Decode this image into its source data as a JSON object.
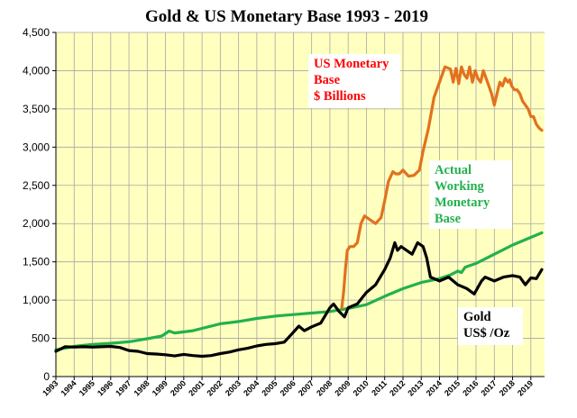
{
  "chart_data": {
    "type": "line",
    "title": "Gold & US Monetary Base 1993 - 2019",
    "xlabel": "",
    "ylabel": "",
    "xlim": [
      1993,
      2019.75
    ],
    "ylim": [
      0,
      4500
    ],
    "y_ticks": [
      0,
      500,
      1000,
      1500,
      2000,
      2500,
      3000,
      3500,
      4000,
      4500
    ],
    "y_tick_labels": [
      "0",
      "500",
      "1,000",
      "1,500",
      "2,000",
      "2,500",
      "3,000",
      "3,500",
      "4,000",
      "4,500"
    ],
    "x_tick_labels": [
      "1993",
      "1994",
      "1995",
      "1996",
      "1997",
      "1998",
      "1999",
      "2000",
      "2001",
      "2002",
      "2003",
      "2004",
      "2005",
      "2006",
      "2007",
      "2008",
      "2009",
      "2010",
      "2011",
      "2012",
      "2013",
      "2014",
      "2015",
      "2016",
      "2017",
      "2018",
      "2019"
    ],
    "grid": true,
    "background": "#FFFFC0",
    "series": [
      {
        "name": "US Monetary Base $ Billions",
        "color": "#E2711D",
        "x": [
          2008.65,
          2008.75,
          2008.85,
          2008.95,
          2009.1,
          2009.3,
          2009.5,
          2009.7,
          2009.9,
          2010.2,
          2010.5,
          2010.8,
          2011.0,
          2011.2,
          2011.45,
          2011.6,
          2011.8,
          2012.0,
          2012.3,
          2012.6,
          2012.9,
          2013.1,
          2013.4,
          2013.7,
          2014.0,
          2014.3,
          2014.6,
          2014.75,
          2014.9,
          2015.05,
          2015.2,
          2015.35,
          2015.5,
          2015.65,
          2015.8,
          2015.95,
          2016.1,
          2016.25,
          2016.4,
          2016.55,
          2016.7,
          2016.85,
          2017.0,
          2017.15,
          2017.3,
          2017.45,
          2017.6,
          2017.75,
          2017.85,
          2017.95,
          2018.1,
          2018.25,
          2018.4,
          2018.55,
          2018.7,
          2018.85,
          2019.0,
          2019.15,
          2019.3,
          2019.45,
          2019.6
        ],
        "values": [
          900,
          1100,
          1400,
          1650,
          1700,
          1700,
          1750,
          2000,
          2100,
          2050,
          2000,
          2080,
          2300,
          2550,
          2680,
          2650,
          2650,
          2700,
          2620,
          2630,
          2700,
          2950,
          3250,
          3650,
          3850,
          4050,
          4020,
          3850,
          4030,
          3830,
          4050,
          3950,
          3900,
          4050,
          3850,
          4000,
          3900,
          3850,
          4000,
          3900,
          3800,
          3700,
          3550,
          3700,
          3850,
          3800,
          3900,
          3850,
          3880,
          3800,
          3750,
          3750,
          3700,
          3600,
          3550,
          3500,
          3400,
          3400,
          3300,
          3250,
          3220
        ]
      },
      {
        "name": "Actual Working Monetary Base",
        "color": "#22B14C",
        "x": [
          1993,
          1994,
          1995,
          1996,
          1997,
          1998,
          1998.8,
          1999.2,
          1999.5,
          2000.5,
          2001,
          2002,
          2003,
          2004,
          2005,
          2006,
          2007,
          2008,
          2009,
          2010,
          2011,
          2012,
          2013,
          2014,
          2014.6,
          2015,
          2015.2,
          2015.4,
          2016,
          2017,
          2018,
          2019,
          2019.6
        ],
        "values": [
          350,
          395,
          420,
          435,
          455,
          495,
          530,
          595,
          570,
          600,
          630,
          690,
          720,
          760,
          790,
          810,
          830,
          850,
          890,
          940,
          1050,
          1150,
          1230,
          1280,
          1330,
          1380,
          1360,
          1430,
          1480,
          1600,
          1720,
          1820,
          1880
        ]
      },
      {
        "name": "Gold US$ /Oz",
        "color": "#000000",
        "x": [
          1993,
          1993.5,
          1994,
          1994.5,
          1995,
          1995.5,
          1996,
          1996.5,
          1997,
          1997.5,
          1998,
          1998.5,
          1999,
          1999.5,
          2000,
          2000.5,
          2001,
          2001.5,
          2002,
          2002.5,
          2003,
          2003.5,
          2004,
          2004.5,
          2005,
          2005.5,
          2006,
          2006.3,
          2006.6,
          2007,
          2007.5,
          2008,
          2008.2,
          2008.5,
          2008.8,
          2009,
          2009.5,
          2010,
          2010.5,
          2011,
          2011.3,
          2011.55,
          2011.7,
          2011.9,
          2012.2,
          2012.5,
          2012.8,
          2013.1,
          2013.3,
          2013.5,
          2014,
          2014.5,
          2015,
          2015.5,
          2015.9,
          2016.3,
          2016.5,
          2017,
          2017.5,
          2018,
          2018.4,
          2018.7,
          2019,
          2019.3,
          2019.6
        ],
        "values": [
          330,
          390,
          385,
          390,
          385,
          390,
          395,
          380,
          340,
          330,
          300,
          295,
          285,
          270,
          290,
          275,
          265,
          275,
          300,
          320,
          350,
          370,
          400,
          420,
          430,
          450,
          580,
          660,
          600,
          650,
          700,
          900,
          950,
          850,
          780,
          900,
          950,
          1100,
          1200,
          1400,
          1550,
          1750,
          1650,
          1700,
          1650,
          1600,
          1750,
          1700,
          1550,
          1300,
          1250,
          1300,
          1200,
          1150,
          1080,
          1250,
          1300,
          1250,
          1300,
          1320,
          1300,
          1200,
          1290,
          1280,
          1400
        ]
      }
    ],
    "annotations": [
      {
        "lines": [
          "US Monetary",
          "Base",
          "$ Billions"
        ],
        "color": "#FF0000"
      },
      {
        "lines": [
          "Actual",
          "Working",
          "Monetary",
          "Base"
        ],
        "color": "#22B14C"
      },
      {
        "lines": [
          "Gold",
          "US$ /Oz"
        ],
        "color": "#000000"
      }
    ]
  }
}
